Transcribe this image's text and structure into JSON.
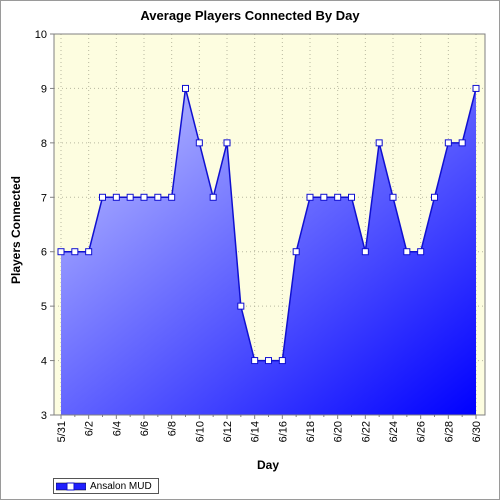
{
  "chart_data": {
    "type": "area",
    "title": "Average Players Connected By Day",
    "xlabel": "Day",
    "ylabel": "Players Connected",
    "ylim": [
      3,
      10
    ],
    "yticks": [
      3,
      4,
      5,
      6,
      7,
      8,
      9,
      10
    ],
    "grid": true,
    "legend_position": "bottom-left",
    "x": [
      "5/31",
      "6/1",
      "6/2",
      "6/3",
      "6/4",
      "6/5",
      "6/6",
      "6/7",
      "6/8",
      "6/9",
      "6/10",
      "6/11",
      "6/12",
      "6/13",
      "6/14",
      "6/15",
      "6/16",
      "6/17",
      "6/18",
      "6/19",
      "6/20",
      "6/21",
      "6/22",
      "6/23",
      "6/24",
      "6/25",
      "6/26",
      "6/27",
      "6/28",
      "6/29",
      "6/30"
    ],
    "xtick_labels": [
      "5/31",
      "6/2",
      "6/4",
      "6/6",
      "6/8",
      "6/10",
      "6/12",
      "6/14",
      "6/16",
      "6/18",
      "6/20",
      "6/22",
      "6/24",
      "6/26",
      "6/28",
      "6/30"
    ],
    "series": [
      {
        "name": "Ansalon MUD",
        "values": [
          6,
          6,
          6,
          7,
          7,
          7,
          7,
          7,
          7,
          9,
          8,
          7,
          8,
          5,
          4,
          4,
          4,
          6,
          7,
          7,
          7,
          7,
          6,
          8,
          7,
          6,
          6,
          7,
          8,
          8,
          9
        ]
      }
    ],
    "colors": {
      "plot_background": "#fdfde0",
      "area_light": "#c4c8ff",
      "area_dark": "#0000ff",
      "line": "#1010d0",
      "marker_fill": "#ffffff"
    }
  }
}
